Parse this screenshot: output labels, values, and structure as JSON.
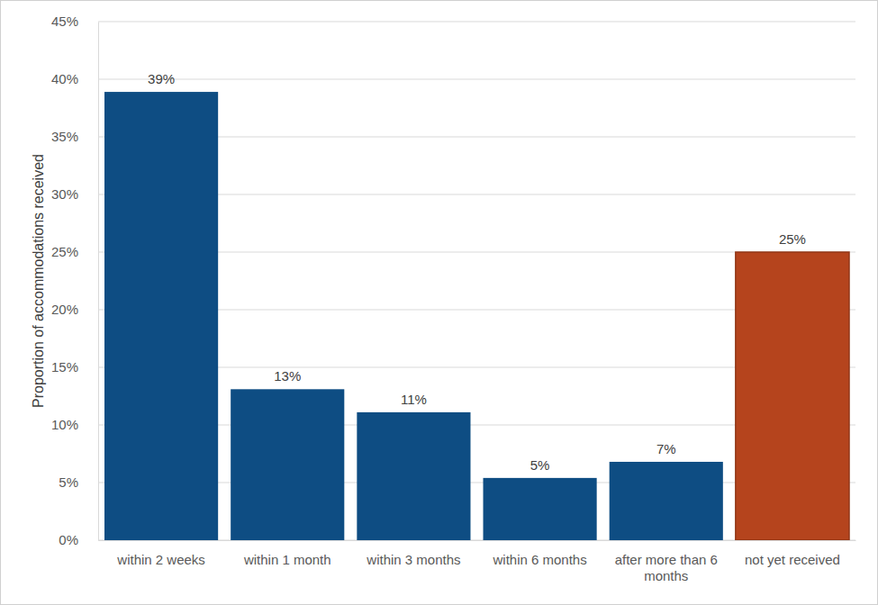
{
  "chart_data": {
    "type": "bar",
    "y_label": "Proportion of accommodations received",
    "categories": [
      "within 2 weeks",
      "within 1 month",
      "within 3 months",
      "within 6 months",
      "after more than 6 months",
      "not yet received"
    ],
    "values": [
      38.9,
      13.1,
      11.1,
      5.4,
      6.8,
      25.0
    ],
    "value_labels": [
      "39%",
      "13%",
      "11%",
      "5%",
      "7%",
      "25%"
    ],
    "colors": [
      "#0e4d83",
      "#0e4d83",
      "#0e4d83",
      "#0e4d83",
      "#0e4d83",
      "#b5441d"
    ],
    "ylim": [
      0,
      45
    ],
    "yticks": [
      {
        "value": 0,
        "label": "0%"
      },
      {
        "value": 5,
        "label": "5%"
      },
      {
        "value": 10,
        "label": "10%"
      },
      {
        "value": 15,
        "label": "15%"
      },
      {
        "value": 20,
        "label": "20%"
      },
      {
        "value": 25,
        "label": "25%"
      },
      {
        "value": 30,
        "label": "30%"
      },
      {
        "value": 35,
        "label": "35%"
      },
      {
        "value": 40,
        "label": "40%"
      },
      {
        "value": 45,
        "label": "45%"
      }
    ],
    "grid": true,
    "data_labels": true
  }
}
